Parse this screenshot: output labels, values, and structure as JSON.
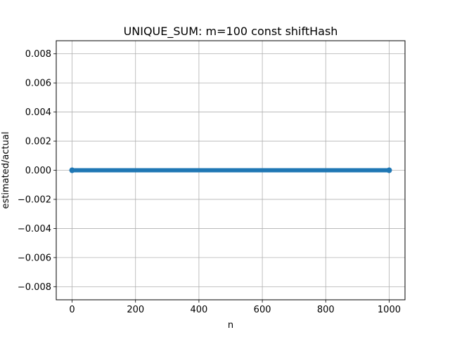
{
  "chart_data": {
    "type": "scatter",
    "title": "UNIQUE_SUM: m=100 const shiftHash",
    "xlabel": "n",
    "ylabel": "estimated/actual",
    "xlim": [
      -50,
      1050
    ],
    "ylim": [
      -0.0089,
      0.0089
    ],
    "xticks": [
      0,
      200,
      400,
      600,
      800,
      1000
    ],
    "xtick_labels": [
      "0",
      "200",
      "400",
      "600",
      "800",
      "1000"
    ],
    "yticks": [
      -0.008,
      -0.006,
      -0.004,
      -0.002,
      0.0,
      0.002,
      0.004,
      0.006,
      0.008
    ],
    "ytick_labels": [
      "−0.008",
      "−0.006",
      "−0.004",
      "−0.002",
      "0.000",
      "0.002",
      "0.004",
      "0.006",
      "0.008"
    ],
    "grid": true,
    "series": [
      {
        "color": "#1f77b4",
        "x_range": [
          0,
          1000
        ],
        "y_constant": 0.0,
        "marker": "circle",
        "connected": true
      }
    ]
  }
}
